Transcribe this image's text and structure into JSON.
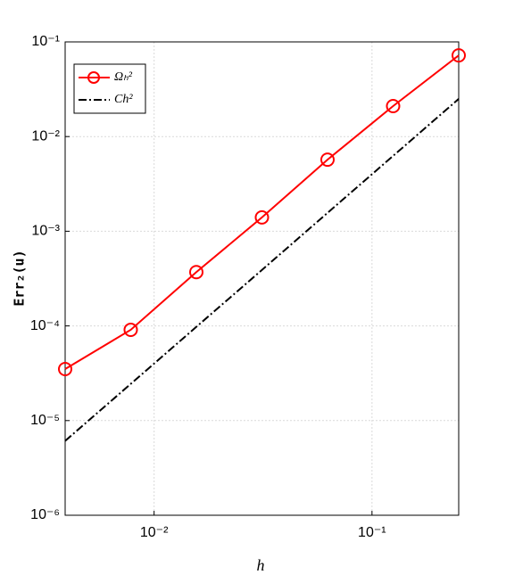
{
  "chart_data": {
    "type": "line",
    "x_label": "h",
    "y_label": "Err₂(u)",
    "x": [
      0.00390625,
      0.0078125,
      0.015625,
      0.03125,
      0.0625,
      0.125,
      0.25
    ],
    "series": [
      {
        "name": "Ωₕ²",
        "color": "#ff0000",
        "marker": "circle",
        "values": [
          3.5e-05,
          9.1e-05,
          0.00037,
          0.0014,
          0.0057,
          0.021,
          0.072
        ]
      },
      {
        "name": "Ch²",
        "color": "#000000",
        "dash": "dash-dot",
        "values": [
          6.1e-06,
          2.44e-05,
          9.77e-05,
          0.00039,
          0.0015625,
          0.00625,
          0.025
        ]
      }
    ],
    "xlim": [
      0.00390625,
      0.25
    ],
    "ylim": [
      1e-06,
      0.1
    ],
    "xscale": "log",
    "yscale": "log",
    "xticks": [
      {
        "value": 0.01,
        "label": "10⁻²"
      },
      {
        "value": 0.1,
        "label": "10⁻¹"
      }
    ],
    "yticks": [
      {
        "value": 1e-06,
        "label": "10⁻⁶"
      },
      {
        "value": 1e-05,
        "label": "10⁻⁵"
      },
      {
        "value": 0.0001,
        "label": "10⁻⁴"
      },
      {
        "value": 0.001,
        "label": "10⁻³"
      },
      {
        "value": 0.01,
        "label": "10⁻²"
      },
      {
        "value": 0.1,
        "label": "10⁻¹"
      }
    ],
    "grid": true,
    "legend": "upper left"
  }
}
